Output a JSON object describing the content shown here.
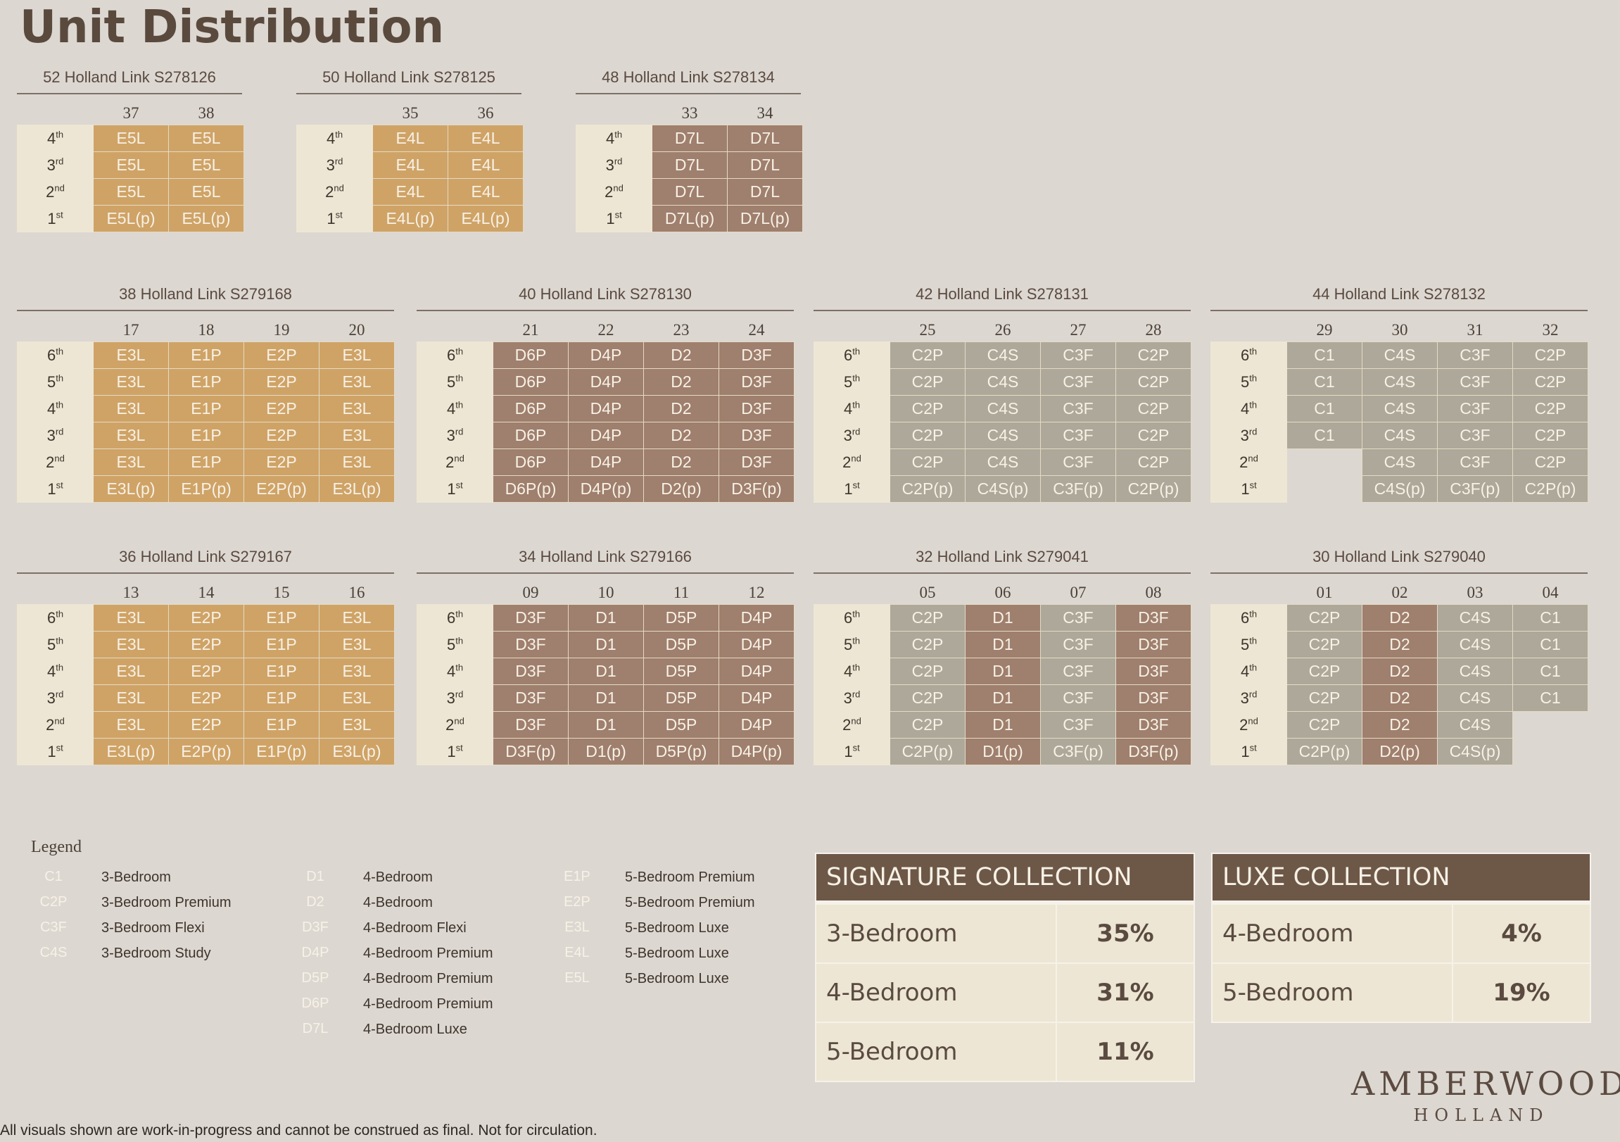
{
  "page_title": "Unit Distribution",
  "blocks": [
    {
      "name": "52 Holland Link S278126",
      "units": [
        "37",
        "38"
      ],
      "floors": [
        [
          "4",
          "th"
        ],
        [
          "3",
          "rd"
        ],
        [
          "2",
          "nd"
        ],
        [
          "1",
          "st"
        ]
      ],
      "rows": [
        [
          "E5L",
          "E5L"
        ],
        [
          "E5L",
          "E5L"
        ],
        [
          "E5L",
          "E5L"
        ],
        [
          "E5L(p)",
          "E5L(p)"
        ]
      ]
    },
    {
      "name": "50 Holland Link S278125",
      "units": [
        "35",
        "36"
      ],
      "floors": [
        [
          "4",
          "th"
        ],
        [
          "3",
          "rd"
        ],
        [
          "2",
          "nd"
        ],
        [
          "1",
          "st"
        ]
      ],
      "rows": [
        [
          "E4L",
          "E4L"
        ],
        [
          "E4L",
          "E4L"
        ],
        [
          "E4L",
          "E4L"
        ],
        [
          "E4L(p)",
          "E4L(p)"
        ]
      ]
    },
    {
      "name": "48 Holland Link S278134",
      "units": [
        "33",
        "34"
      ],
      "floors": [
        [
          "4",
          "th"
        ],
        [
          "3",
          "rd"
        ],
        [
          "2",
          "nd"
        ],
        [
          "1",
          "st"
        ]
      ],
      "rows": [
        [
          "D7L",
          "D7L"
        ],
        [
          "D7L",
          "D7L"
        ],
        [
          "D7L",
          "D7L"
        ],
        [
          "D7L(p)",
          "D7L(p)"
        ]
      ]
    },
    {
      "name": "38 Holland Link S279168",
      "units": [
        "17",
        "18",
        "19",
        "20"
      ],
      "floors": [
        [
          "6",
          "th"
        ],
        [
          "5",
          "th"
        ],
        [
          "4",
          "th"
        ],
        [
          "3",
          "rd"
        ],
        [
          "2",
          "nd"
        ],
        [
          "1",
          "st"
        ]
      ],
      "rows": [
        [
          "E3L",
          "E1P",
          "E2P",
          "E3L"
        ],
        [
          "E3L",
          "E1P",
          "E2P",
          "E3L"
        ],
        [
          "E3L",
          "E1P",
          "E2P",
          "E3L"
        ],
        [
          "E3L",
          "E1P",
          "E2P",
          "E3L"
        ],
        [
          "E3L",
          "E1P",
          "E2P",
          "E3L"
        ],
        [
          "E3L(p)",
          "E1P(p)",
          "E2P(p)",
          "E3L(p)"
        ]
      ]
    },
    {
      "name": "40 Holland Link S278130",
      "units": [
        "21",
        "22",
        "23",
        "24"
      ],
      "floors": [
        [
          "6",
          "th"
        ],
        [
          "5",
          "th"
        ],
        [
          "4",
          "th"
        ],
        [
          "3",
          "rd"
        ],
        [
          "2",
          "nd"
        ],
        [
          "1",
          "st"
        ]
      ],
      "rows": [
        [
          "D6P",
          "D4P",
          "D2",
          "D3F"
        ],
        [
          "D6P",
          "D4P",
          "D2",
          "D3F"
        ],
        [
          "D6P",
          "D4P",
          "D2",
          "D3F"
        ],
        [
          "D6P",
          "D4P",
          "D2",
          "D3F"
        ],
        [
          "D6P",
          "D4P",
          "D2",
          "D3F"
        ],
        [
          "D6P(p)",
          "D4P(p)",
          "D2(p)",
          "D3F(p)"
        ]
      ]
    },
    {
      "name": "42 Holland Link S278131",
      "units": [
        "25",
        "26",
        "27",
        "28"
      ],
      "floors": [
        [
          "6",
          "th"
        ],
        [
          "5",
          "th"
        ],
        [
          "4",
          "th"
        ],
        [
          "3",
          "rd"
        ],
        [
          "2",
          "nd"
        ],
        [
          "1",
          "st"
        ]
      ],
      "rows": [
        [
          "C2P",
          "C4S",
          "C3F",
          "C2P"
        ],
        [
          "C2P",
          "C4S",
          "C3F",
          "C2P"
        ],
        [
          "C2P",
          "C4S",
          "C3F",
          "C2P"
        ],
        [
          "C2P",
          "C4S",
          "C3F",
          "C2P"
        ],
        [
          "C2P",
          "C4S",
          "C3F",
          "C2P"
        ],
        [
          "C2P(p)",
          "C4S(p)",
          "C3F(p)",
          "C2P(p)"
        ]
      ]
    },
    {
      "name": "44 Holland Link S278132",
      "units": [
        "29",
        "30",
        "31",
        "32"
      ],
      "floors": [
        [
          "6",
          "th"
        ],
        [
          "5",
          "th"
        ],
        [
          "4",
          "th"
        ],
        [
          "3",
          "rd"
        ],
        [
          "2",
          "nd"
        ],
        [
          "1",
          "st"
        ]
      ],
      "rows": [
        [
          "C1",
          "C4S",
          "C3F",
          "C2P"
        ],
        [
          "C1",
          "C4S",
          "C3F",
          "C2P"
        ],
        [
          "C1",
          "C4S",
          "C3F",
          "C2P"
        ],
        [
          "C1",
          "C4S",
          "C3F",
          "C2P"
        ],
        [
          "",
          "C4S",
          "C3F",
          "C2P"
        ],
        [
          "",
          "C4S(p)",
          "C3F(p)",
          "C2P(p)"
        ]
      ]
    },
    {
      "name": "36 Holland Link S279167",
      "units": [
        "13",
        "14",
        "15",
        "16"
      ],
      "floors": [
        [
          "6",
          "th"
        ],
        [
          "5",
          "th"
        ],
        [
          "4",
          "th"
        ],
        [
          "3",
          "rd"
        ],
        [
          "2",
          "nd"
        ],
        [
          "1",
          "st"
        ]
      ],
      "rows": [
        [
          "E3L",
          "E2P",
          "E1P",
          "E3L"
        ],
        [
          "E3L",
          "E2P",
          "E1P",
          "E3L"
        ],
        [
          "E3L",
          "E2P",
          "E1P",
          "E3L"
        ],
        [
          "E3L",
          "E2P",
          "E1P",
          "E3L"
        ],
        [
          "E3L",
          "E2P",
          "E1P",
          "E3L"
        ],
        [
          "E3L(p)",
          "E2P(p)",
          "E1P(p)",
          "E3L(p)"
        ]
      ]
    },
    {
      "name": "34 Holland Link S279166",
      "units": [
        "09",
        "10",
        "11",
        "12"
      ],
      "floors": [
        [
          "6",
          "th"
        ],
        [
          "5",
          "th"
        ],
        [
          "4",
          "th"
        ],
        [
          "3",
          "rd"
        ],
        [
          "2",
          "nd"
        ],
        [
          "1",
          "st"
        ]
      ],
      "rows": [
        [
          "D3F",
          "D1",
          "D5P",
          "D4P"
        ],
        [
          "D3F",
          "D1",
          "D5P",
          "D4P"
        ],
        [
          "D3F",
          "D1",
          "D5P",
          "D4P"
        ],
        [
          "D3F",
          "D1",
          "D5P",
          "D4P"
        ],
        [
          "D3F",
          "D1",
          "D5P",
          "D4P"
        ],
        [
          "D3F(p)",
          "D1(p)",
          "D5P(p)",
          "D4P(p)"
        ]
      ]
    },
    {
      "name": "32 Holland Link S279041",
      "units": [
        "05",
        "06",
        "07",
        "08"
      ],
      "floors": [
        [
          "6",
          "th"
        ],
        [
          "5",
          "th"
        ],
        [
          "4",
          "th"
        ],
        [
          "3",
          "rd"
        ],
        [
          "2",
          "nd"
        ],
        [
          "1",
          "st"
        ]
      ],
      "rows": [
        [
          "C2P",
          "D1",
          "C3F",
          "D3F"
        ],
        [
          "C2P",
          "D1",
          "C3F",
          "D3F"
        ],
        [
          "C2P",
          "D1",
          "C3F",
          "D3F"
        ],
        [
          "C2P",
          "D1",
          "C3F",
          "D3F"
        ],
        [
          "C2P",
          "D1",
          "C3F",
          "D3F"
        ],
        [
          "C2P(p)",
          "D1(p)",
          "C3F(p)",
          "D3F(p)"
        ]
      ]
    },
    {
      "name": "30 Holland Link S279040",
      "units": [
        "01",
        "02",
        "03",
        "04"
      ],
      "floors": [
        [
          "6",
          "th"
        ],
        [
          "5",
          "th"
        ],
        [
          "4",
          "th"
        ],
        [
          "3",
          "rd"
        ],
        [
          "2",
          "nd"
        ],
        [
          "1",
          "st"
        ]
      ],
      "rows": [
        [
          "C2P",
          "D2",
          "C4S",
          "C1"
        ],
        [
          "C2P",
          "D2",
          "C4S",
          "C1"
        ],
        [
          "C2P",
          "D2",
          "C4S",
          "C1"
        ],
        [
          "C2P",
          "D2",
          "C4S",
          "C1"
        ],
        [
          "C2P",
          "D2",
          "C4S",
          ""
        ],
        [
          "C2P(p)",
          "D2(p)",
          "C4S(p)",
          ""
        ]
      ]
    }
  ],
  "legend": {
    "title": "Legend",
    "columns": [
      [
        {
          "code": "C1",
          "label": "3-Bedroom"
        },
        {
          "code": "C2P",
          "label": "3-Bedroom Premium"
        },
        {
          "code": "C3F",
          "label": "3-Bedroom Flexi"
        },
        {
          "code": "C4S",
          "label": "3-Bedroom Study"
        }
      ],
      [
        {
          "code": "D1",
          "label": "4-Bedroom"
        },
        {
          "code": "D2",
          "label": "4-Bedroom"
        },
        {
          "code": "D3F",
          "label": "4-Bedroom Flexi"
        },
        {
          "code": "D4P",
          "label": "4-Bedroom Premium"
        },
        {
          "code": "D5P",
          "label": "4-Bedroom Premium"
        },
        {
          "code": "D6P",
          "label": "4-Bedroom Premium"
        },
        {
          "code": "D7L",
          "label": "4-Bedroom Luxe"
        }
      ],
      [
        {
          "code": "E1P",
          "label": "5-Bedroom Premium"
        },
        {
          "code": "E2P",
          "label": "5-Bedroom Premium"
        },
        {
          "code": "E3L",
          "label": "5-Bedroom Luxe"
        },
        {
          "code": "E4L",
          "label": "5-Bedroom Luxe"
        },
        {
          "code": "E5L",
          "label": "5-Bedroom Luxe"
        }
      ]
    ]
  },
  "collections": [
    {
      "title": "SIGNATURE COLLECTION",
      "rows": [
        {
          "type": "3-Bedroom",
          "pct": "35%"
        },
        {
          "type": "4-Bedroom",
          "pct": "31%"
        },
        {
          "type": "5-Bedroom",
          "pct": "11%"
        }
      ]
    },
    {
      "title": "LUXE COLLECTION",
      "rows": [
        {
          "type": "4-Bedroom",
          "pct": "4%"
        },
        {
          "type": "5-Bedroom",
          "pct": "19%"
        }
      ]
    }
  ],
  "brand": {
    "name": "AMBERWOOD",
    "sub": "HOLLAND"
  },
  "disclaimer": "All visuals shown are work-in-progress and cannot be construed as final.  Not for circulation.",
  "colors": {
    "bedroom3": "#ada899",
    "bedroom4": "#9f7f6d",
    "bedroom5": "#cfa366",
    "floor": "#ede6d4",
    "collection_header": "#6d5848"
  }
}
